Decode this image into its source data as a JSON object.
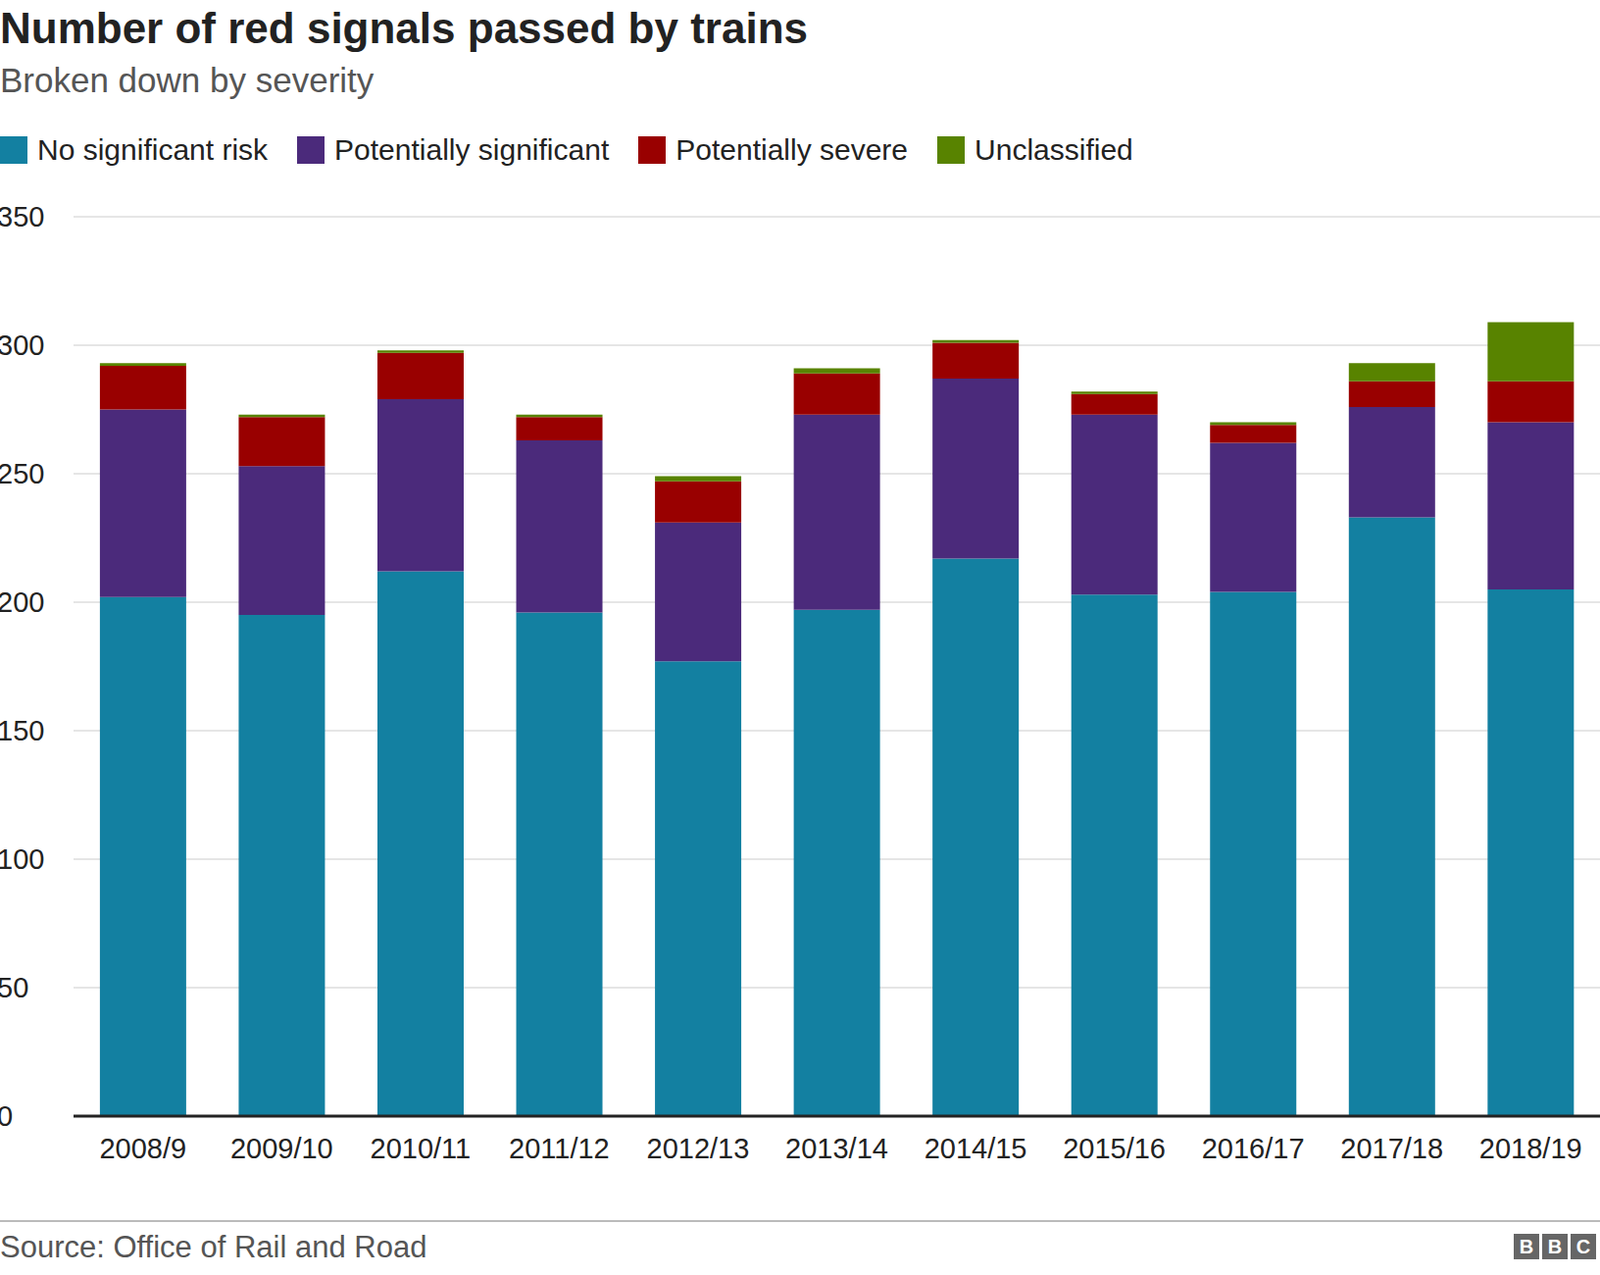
{
  "chart_data": {
    "type": "bar",
    "title": "Number of red signals passed by trains",
    "subtitle": "Broken down by severity",
    "source": "Source: Office of Rail and Road",
    "logo": "BBC",
    "stacked": true,
    "grid": true,
    "legend": "top",
    "categories": [
      "2008/9",
      "2009/10",
      "2010/11",
      "2011/12",
      "2012/13",
      "2013/14",
      "2014/15",
      "2015/16",
      "2016/17",
      "2017/18",
      "2018/19"
    ],
    "series": [
      {
        "name": "No significant risk",
        "color": "#1380A1",
        "values": [
          202,
          195,
          212,
          196,
          177,
          197,
          217,
          203,
          204,
          233,
          205
        ]
      },
      {
        "name": "Potentially significant",
        "color": "#4B2A7B",
        "values": [
          73,
          58,
          67,
          67,
          54,
          76,
          70,
          70,
          58,
          43,
          65
        ]
      },
      {
        "name": "Potentially severe",
        "color": "#990000",
        "values": [
          17,
          19,
          18,
          9,
          16,
          16,
          14,
          8,
          7,
          10,
          16
        ]
      },
      {
        "name": "Unclassified",
        "color": "#588300",
        "values": [
          1,
          1,
          1,
          1,
          2,
          2,
          1,
          1,
          1,
          7,
          23
        ]
      }
    ],
    "ylim": [
      0,
      350
    ],
    "yticks": [
      0,
      50,
      100,
      150,
      200,
      250,
      300,
      350
    ]
  }
}
